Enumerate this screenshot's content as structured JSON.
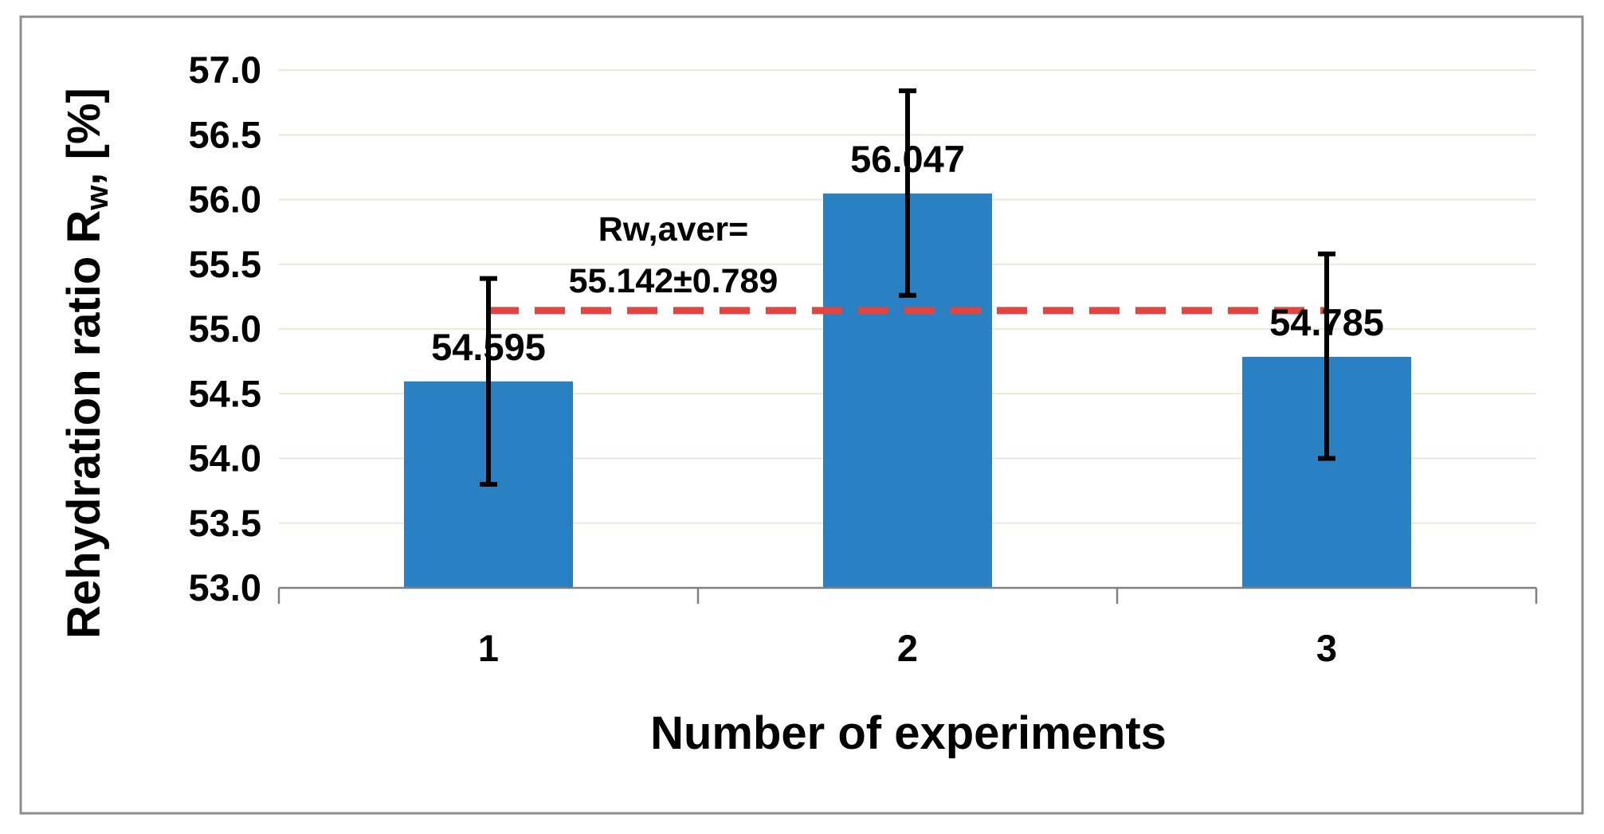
{
  "chart_data": {
    "type": "bar",
    "title": "",
    "xlabel": "Number of experiments",
    "ylabel_main": "Rehydration ratio R",
    "ylabel_sub": "w",
    "ylabel_tail": ", [%]",
    "categories": [
      "1",
      "2",
      "3"
    ],
    "values": [
      54.595,
      56.047,
      54.785
    ],
    "value_labels": [
      "54.595",
      "56.047",
      "54.785"
    ],
    "error_low": [
      53.8,
      55.26,
      54.0
    ],
    "error_high": [
      55.39,
      56.84,
      55.58
    ],
    "ylim": [
      53.0,
      57.0
    ],
    "ytick_step": 0.5,
    "ytick_labels": [
      "53.0",
      "53.5",
      "54.0",
      "54.5",
      "55.0",
      "55.5",
      "56.0",
      "56.5",
      "57.0"
    ],
    "grid": true,
    "average_line": {
      "value": 55.142,
      "label_line1": "Rw,aver=",
      "label_line2": "55.142±0.789"
    },
    "colors": {
      "bar": "#2980C3",
      "error": "#000000",
      "average_line": "#E0463F",
      "grid": "#E9E9D8",
      "axis": "#808080",
      "frame": "#8C8C8C"
    }
  }
}
